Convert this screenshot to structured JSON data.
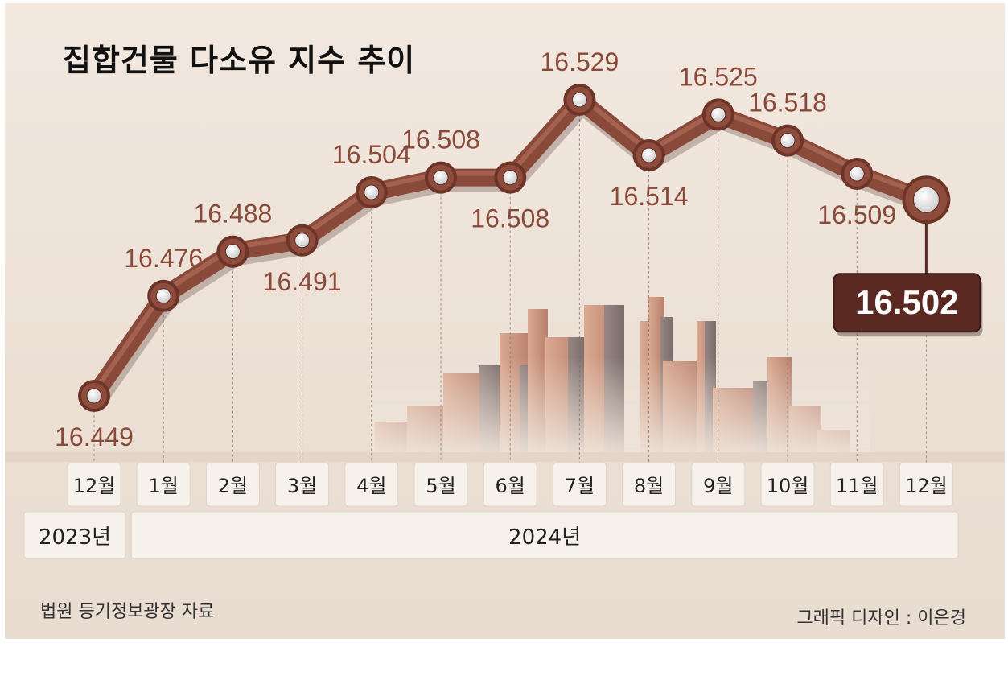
{
  "title": "집합건물 다소유 지수 추이",
  "source": "법원 등기정보광장 자료",
  "credit": "그래픽 디자인 : 이은경",
  "colors": {
    "line": "#8a4a3a",
    "label": "#8a4a3a",
    "callout_bg": "#5a2a22",
    "callout_text": "#ffffff"
  },
  "chart_data": {
    "type": "line",
    "title": "집합건물 다소유 지수 추이",
    "categories": [
      "12월",
      "1월",
      "2월",
      "3월",
      "4월",
      "5월",
      "6월",
      "7월",
      "8월",
      "9월",
      "10월",
      "11월",
      "12월"
    ],
    "values": [
      16.449,
      16.476,
      16.488,
      16.491,
      16.504,
      16.508,
      16.508,
      16.529,
      16.514,
      16.525,
      16.518,
      16.509,
      16.502
    ],
    "value_labels": [
      "16.449",
      "16.476",
      "16.488",
      "16.491",
      "16.504",
      "16.508",
      "16.508",
      "16.529",
      "16.514",
      "16.525",
      "16.518",
      "16.509",
      "16.502"
    ],
    "label_positions": [
      "below",
      "above",
      "above",
      "below",
      "above",
      "above",
      "below",
      "above",
      "below",
      "above",
      "above",
      "below",
      "callout"
    ],
    "years": [
      {
        "label": "2023년",
        "span": [
          0,
          0
        ]
      },
      {
        "label": "2024년",
        "span": [
          1,
          12
        ]
      }
    ],
    "highlight": {
      "index": 12,
      "label": "16.502"
    },
    "ylim": [
      16.44,
      16.535
    ],
    "grid": false,
    "legend": "none"
  }
}
